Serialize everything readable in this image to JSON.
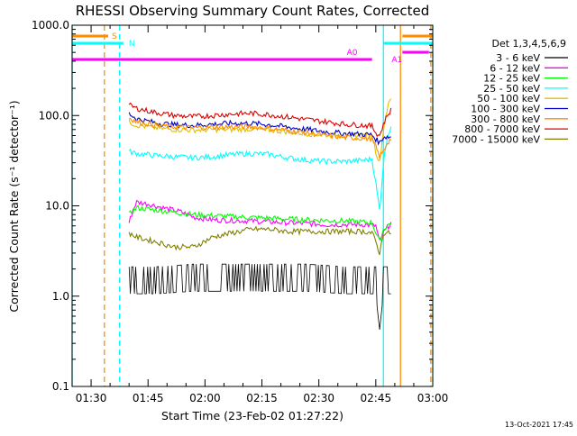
{
  "chart_data": {
    "type": "line",
    "title": "RHESSI Observing Summary Count Rates, Corrected",
    "xlabel": "Start Time (23-Feb-02 01:27:22)",
    "ylabel": "Corrected Count Rate (s⁻¹ detector⁻¹)",
    "yscale": "log",
    "ylim": [
      0.1,
      1000
    ],
    "xlim_minutes": [
      -2,
      93
    ],
    "x_tick_minutes": [
      3,
      18,
      33,
      48,
      63,
      78,
      93
    ],
    "x_tick_labels": [
      "01:30",
      "01:45",
      "02:00",
      "02:15",
      "02:30",
      "02:45",
      "03:00"
    ],
    "y_ticks": [
      0.1,
      1,
      10,
      100,
      1000
    ],
    "y_tick_labels": [
      "0.1",
      "1.0",
      "10.0",
      "100.0",
      "1000.0"
    ],
    "grid": false,
    "legend_position": "right",
    "legend_title": "Det 1,3,4,5,6,9",
    "footer": "13-Oct-2021 17:45",
    "series": [
      {
        "name": "3 - 6 keV",
        "color": "#000000",
        "noisy": true,
        "points": [
          [
            13,
            1.5
          ],
          [
            20,
            1.5
          ],
          [
            30,
            1.6
          ],
          [
            40,
            1.6
          ],
          [
            50,
            1.6
          ],
          [
            60,
            1.6
          ],
          [
            70,
            1.5
          ],
          [
            78,
            1.5
          ],
          [
            79,
            0.6
          ],
          [
            80,
            1.5
          ],
          [
            82,
            1.5
          ]
        ]
      },
      {
        "name": "6 - 12 keV",
        "color": "#ff00ff",
        "points": [
          [
            13,
            6.5
          ],
          [
            14,
            9
          ],
          [
            15,
            11
          ],
          [
            18,
            10.5
          ],
          [
            22,
            9.5
          ],
          [
            27,
            8.5
          ],
          [
            30,
            7.5
          ],
          [
            35,
            7
          ],
          [
            45,
            6.8
          ],
          [
            55,
            6.5
          ],
          [
            65,
            6.2
          ],
          [
            75,
            6.2
          ],
          [
            78,
            6
          ],
          [
            79,
            4
          ],
          [
            80,
            5
          ],
          [
            82,
            6.5
          ]
        ]
      },
      {
        "name": "12 - 25 keV",
        "color": "#00ff00",
        "points": [
          [
            13,
            8
          ],
          [
            15,
            9.5
          ],
          [
            20,
            9
          ],
          [
            25,
            8.5
          ],
          [
            30,
            8
          ],
          [
            40,
            7.6
          ],
          [
            50,
            7.3
          ],
          [
            60,
            7
          ],
          [
            70,
            6.8
          ],
          [
            77,
            6.5
          ],
          [
            79,
            4
          ],
          [
            80,
            5.5
          ],
          [
            82,
            6.5
          ]
        ]
      },
      {
        "name": "25 - 50 keV",
        "color": "#00ffff",
        "points": [
          [
            13,
            40
          ],
          [
            15,
            38
          ],
          [
            20,
            36
          ],
          [
            25,
            35
          ],
          [
            30,
            34
          ],
          [
            35,
            35
          ],
          [
            40,
            37
          ],
          [
            45,
            38
          ],
          [
            50,
            37
          ],
          [
            55,
            34
          ],
          [
            60,
            32
          ],
          [
            65,
            31
          ],
          [
            70,
            31
          ],
          [
            75,
            32
          ],
          [
            77,
            33
          ],
          [
            78,
            18
          ],
          [
            79,
            9
          ],
          [
            80,
            30
          ],
          [
            81,
            58
          ],
          [
            82,
            75
          ]
        ]
      },
      {
        "name": "50 - 100 keV",
        "color": "#e0c000",
        "points": [
          [
            13,
            85
          ],
          [
            15,
            78
          ],
          [
            20,
            73
          ],
          [
            25,
            70
          ],
          [
            30,
            69
          ],
          [
            35,
            70
          ],
          [
            40,
            70
          ],
          [
            45,
            71
          ],
          [
            50,
            69
          ],
          [
            55,
            66
          ],
          [
            60,
            63
          ],
          [
            65,
            61
          ],
          [
            70,
            60
          ],
          [
            75,
            60
          ],
          [
            77,
            61
          ],
          [
            78,
            40
          ],
          [
            79,
            30
          ],
          [
            80,
            70
          ],
          [
            81,
            120
          ],
          [
            82,
            155
          ]
        ]
      },
      {
        "name": "100 - 300 keV",
        "color": "#0000cc",
        "points": [
          [
            13,
            105
          ],
          [
            15,
            92
          ],
          [
            20,
            83
          ],
          [
            25,
            79
          ],
          [
            30,
            78
          ],
          [
            35,
            80
          ],
          [
            40,
            82
          ],
          [
            45,
            82
          ],
          [
            50,
            79
          ],
          [
            55,
            74
          ],
          [
            60,
            70
          ],
          [
            65,
            66
          ],
          [
            70,
            63
          ],
          [
            75,
            62
          ],
          [
            77,
            61
          ],
          [
            78,
            55
          ],
          [
            79,
            50
          ],
          [
            80,
            58
          ],
          [
            82,
            58
          ]
        ]
      },
      {
        "name": "300 - 800 keV",
        "color": "#ff8c00",
        "points": [
          [
            13,
            95
          ],
          [
            15,
            85
          ],
          [
            20,
            78
          ],
          [
            25,
            75
          ],
          [
            30,
            73
          ],
          [
            35,
            74
          ],
          [
            40,
            75
          ],
          [
            45,
            75
          ],
          [
            50,
            72
          ],
          [
            55,
            68
          ],
          [
            60,
            64
          ],
          [
            65,
            60
          ],
          [
            70,
            57
          ],
          [
            75,
            56
          ],
          [
            77,
            55
          ],
          [
            78,
            45
          ],
          [
            79,
            35
          ],
          [
            80,
            40
          ],
          [
            81,
            50
          ],
          [
            82,
            55
          ]
        ]
      },
      {
        "name": "800 - 7000 keV",
        "color": "#dd0000",
        "points": [
          [
            13,
            130
          ],
          [
            15,
            120
          ],
          [
            20,
            108
          ],
          [
            25,
            100
          ],
          [
            30,
            97
          ],
          [
            35,
            100
          ],
          [
            40,
            104
          ],
          [
            45,
            106
          ],
          [
            50,
            102
          ],
          [
            55,
            96
          ],
          [
            60,
            90
          ],
          [
            65,
            85
          ],
          [
            70,
            80
          ],
          [
            75,
            78
          ],
          [
            77,
            76
          ],
          [
            78,
            65
          ],
          [
            79,
            60
          ],
          [
            80,
            80
          ],
          [
            81,
            100
          ],
          [
            82,
            115
          ]
        ]
      },
      {
        "name": "7000 - 15000 keV",
        "color": "#808000",
        "points": [
          [
            13,
            5
          ],
          [
            15,
            4.5
          ],
          [
            20,
            4
          ],
          [
            25,
            3.5
          ],
          [
            30,
            3.5
          ],
          [
            35,
            4.5
          ],
          [
            40,
            5
          ],
          [
            45,
            5.5
          ],
          [
            50,
            5.5
          ],
          [
            55,
            5.2
          ],
          [
            60,
            5.2
          ],
          [
            65,
            5.2
          ],
          [
            70,
            5.2
          ],
          [
            75,
            5.2
          ],
          [
            77,
            5
          ],
          [
            78,
            4
          ],
          [
            79,
            3
          ],
          [
            80,
            5
          ],
          [
            82,
            5
          ]
        ]
      }
    ],
    "markers": [
      {
        "label": "S",
        "color": "#ff8c00",
        "segments": [
          [
            -2,
            7.5
          ],
          [
            85,
            93
          ]
        ]
      },
      {
        "label": "N",
        "color": "#00ffff",
        "segments": [
          [
            -2,
            11.5
          ],
          [
            80,
            93
          ]
        ]
      },
      {
        "label": "A0",
        "color": "#ff00ff",
        "segments": [
          [
            -2,
            77
          ]
        ]
      },
      {
        "label": "A1",
        "color": "#ff00ff",
        "segments": [
          [
            85,
            92
          ]
        ]
      }
    ],
    "vertical_lines": [
      {
        "minute": -2,
        "color": "#00ffff",
        "style": "solid"
      },
      {
        "minute": 6.5,
        "color": "#ff8c00",
        "style": "dashed"
      },
      {
        "minute": 10.5,
        "color": "#00ffff",
        "style": "dashed"
      },
      {
        "minute": 80,
        "color": "#00ffff",
        "style": "solid"
      },
      {
        "minute": 84.5,
        "color": "#ff8c00",
        "style": "solid"
      },
      {
        "minute": 92.5,
        "color": "#ff8c00",
        "style": "dashed"
      },
      {
        "minute": 93,
        "color": "#00ffff",
        "style": "dashed"
      }
    ]
  }
}
